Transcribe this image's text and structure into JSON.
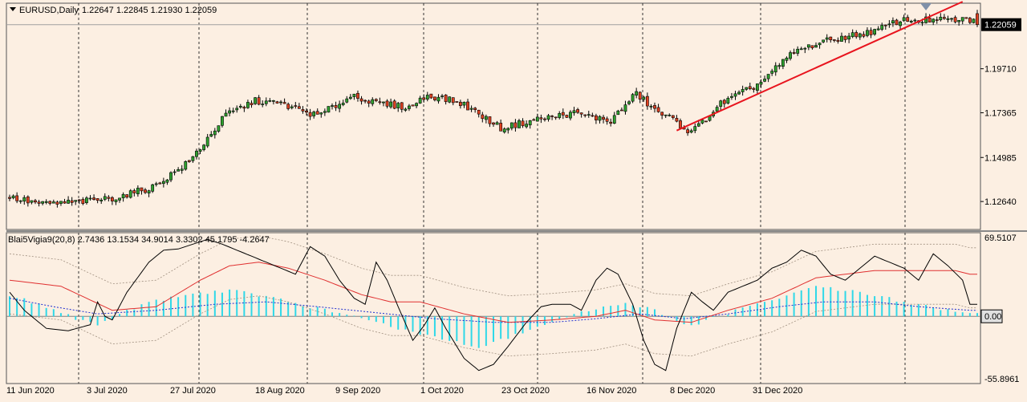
{
  "header": {
    "symbol_label": "EURUSD,Daily",
    "ohlc_label": "1.22647 1.22845 1.21930 1.22059",
    "indicator_label": "Blai5Vigia9(20,8) 2.7436 13.1534 34.9014 3.3302 45.1795 -4.2647"
  },
  "colors": {
    "background": "#fcefe2",
    "bull": "#2ea02e",
    "bear": "#e04020",
    "trendline": "#e8141e",
    "histogram": "#2fd8e8",
    "osc_line": "#000000",
    "signal_line": "#e03030",
    "blue_line": "#2030d0",
    "band": "#a09080"
  },
  "chart_data": [
    {
      "type": "candlestick",
      "title": "EURUSD,Daily",
      "last_price_label": "1.22059",
      "ylim": [
        1.1115,
        1.232
      ],
      "y_ticks": [
        "1.22059",
        "1.19710",
        "1.17365",
        "1.14985",
        "1.12640"
      ],
      "x_ticks": [
        "11 Jun 2020",
        "3 Jul 2020",
        "27 Jul 2020",
        "18 Aug 2020",
        "9 Sep 2020",
        "1 Oct 2020",
        "23 Oct 2020",
        "16 Nov 2020",
        "8 Dec 2020",
        "31 Dec 2020"
      ],
      "close_path": [
        [
          0,
          1.129
        ],
        [
          10,
          1.125
        ],
        [
          20,
          1.1262
        ],
        [
          30,
          1.1285
        ],
        [
          40,
          1.134
        ],
        [
          50,
          1.1475
        ],
        [
          60,
          1.1725
        ],
        [
          68,
          1.18
        ],
        [
          75,
          1.1785
        ],
        [
          85,
          1.172
        ],
        [
          95,
          1.1832
        ],
        [
          100,
          1.179
        ],
        [
          110,
          1.1765
        ],
        [
          115,
          1.183
        ],
        [
          120,
          1.181
        ],
        [
          125,
          1.178
        ],
        [
          135,
          1.1655
        ],
        [
          145,
          1.1702
        ],
        [
          155,
          1.1735
        ],
        [
          165,
          1.1693
        ],
        [
          172,
          1.184
        ],
        [
          177,
          1.175
        ],
        [
          182,
          1.17
        ],
        [
          187,
          1.163
        ],
        [
          195,
          1.1785
        ],
        [
          205,
          1.1885
        ],
        [
          215,
          1.206
        ],
        [
          222,
          1.211
        ],
        [
          230,
          1.2145
        ],
        [
          237,
          1.217
        ],
        [
          244,
          1.223
        ]
      ],
      "last": {
        "open": 1.22647,
        "high": 1.22845,
        "low": 1.2193,
        "close": 1.22059
      },
      "trendline": {
        "start": [
          182,
          1.1642
        ],
        "end": [
          260,
          1.2328
        ]
      }
    },
    {
      "type": "line",
      "title": "Blai5Vigia9(20,8)",
      "ylim": [
        -55.8961,
        69.5107
      ],
      "y_ticks": [
        "69.5107",
        "0.00",
        "-55.8961"
      ],
      "osc_path": [
        [
          0,
          20
        ],
        [
          4,
          5
        ],
        [
          10,
          -10
        ],
        [
          16,
          -12
        ],
        [
          22,
          -7
        ],
        [
          24,
          12
        ],
        [
          26,
          0
        ],
        [
          28,
          -3
        ],
        [
          32,
          20
        ],
        [
          38,
          45
        ],
        [
          42,
          55
        ],
        [
          46,
          56
        ],
        [
          50,
          60
        ],
        [
          54,
          64
        ],
        [
          58,
          60
        ],
        [
          62,
          55
        ],
        [
          66,
          50
        ],
        [
          70,
          45
        ],
        [
          74,
          40
        ],
        [
          78,
          35
        ],
        [
          82,
          58
        ],
        [
          86,
          50
        ],
        [
          90,
          30
        ],
        [
          94,
          15
        ],
        [
          97,
          10
        ],
        [
          100,
          45
        ],
        [
          103,
          30
        ],
        [
          106,
          8
        ],
        [
          110,
          -20
        ],
        [
          113,
          -8
        ],
        [
          116,
          7
        ],
        [
          119,
          -10
        ],
        [
          124,
          -35
        ],
        [
          128,
          -45
        ],
        [
          132,
          -40
        ],
        [
          136,
          -25
        ],
        [
          141,
          -5
        ],
        [
          145,
          8
        ],
        [
          148,
          10
        ],
        [
          153,
          10
        ],
        [
          156,
          5
        ],
        [
          160,
          30
        ],
        [
          163,
          40
        ],
        [
          166,
          35
        ],
        [
          170,
          10
        ],
        [
          173,
          -20
        ],
        [
          176,
          -40
        ],
        [
          179,
          -45
        ],
        [
          182,
          -10
        ],
        [
          186,
          20
        ],
        [
          189,
          12
        ],
        [
          192,
          5
        ],
        [
          196,
          20
        ],
        [
          200,
          25
        ],
        [
          204,
          30
        ],
        [
          208,
          40
        ],
        [
          212,
          45
        ],
        [
          216,
          55
        ],
        [
          220,
          50
        ],
        [
          224,
          35
        ],
        [
          228,
          30
        ],
        [
          232,
          40
        ],
        [
          236,
          50
        ],
        [
          240,
          45
        ],
        [
          244,
          40
        ],
        [
          248,
          30
        ],
        [
          252,
          52
        ],
        [
          256,
          42
        ],
        [
          260,
          30
        ],
        [
          262,
          10
        ]
      ],
      "signal_path": [
        [
          0,
          30
        ],
        [
          14,
          25
        ],
        [
          28,
          5
        ],
        [
          40,
          8
        ],
        [
          52,
          30
        ],
        [
          60,
          42
        ],
        [
          68,
          45
        ],
        [
          76,
          40
        ],
        [
          86,
          30
        ],
        [
          96,
          18
        ],
        [
          104,
          12
        ],
        [
          112,
          12
        ],
        [
          124,
          2
        ],
        [
          136,
          -5
        ],
        [
          148,
          -3
        ],
        [
          160,
          0
        ],
        [
          168,
          5
        ],
        [
          176,
          -3
        ],
        [
          186,
          -5
        ],
        [
          196,
          5
        ],
        [
          208,
          15
        ],
        [
          220,
          32
        ],
        [
          236,
          38
        ],
        [
          248,
          38
        ],
        [
          258,
          38
        ],
        [
          262,
          35
        ]
      ],
      "blue_path": [
        [
          0,
          15
        ],
        [
          12,
          8
        ],
        [
          24,
          2
        ],
        [
          40,
          5
        ],
        [
          56,
          10
        ],
        [
          70,
          12
        ],
        [
          84,
          8
        ],
        [
          100,
          3
        ],
        [
          116,
          -2
        ],
        [
          132,
          -5
        ],
        [
          148,
          -5
        ],
        [
          160,
          -2
        ],
        [
          172,
          2
        ],
        [
          184,
          -2
        ],
        [
          196,
          2
        ],
        [
          210,
          8
        ],
        [
          222,
          12
        ],
        [
          236,
          12
        ],
        [
          248,
          8
        ],
        [
          262,
          5
        ]
      ],
      "histogram": [
        [
          0,
          18
        ],
        [
          12,
          5
        ],
        [
          24,
          -8
        ],
        [
          36,
          10
        ],
        [
          48,
          18
        ],
        [
          62,
          22
        ],
        [
          72,
          15
        ],
        [
          86,
          5
        ],
        [
          100,
          -5
        ],
        [
          112,
          -15
        ],
        [
          128,
          -25
        ],
        [
          144,
          -10
        ],
        [
          158,
          5
        ],
        [
          168,
          10
        ],
        [
          176,
          5
        ],
        [
          186,
          -8
        ],
        [
          198,
          5
        ],
        [
          210,
          15
        ],
        [
          220,
          25
        ],
        [
          232,
          20
        ],
        [
          244,
          12
        ],
        [
          256,
          5
        ],
        [
          262,
          3
        ]
      ]
    }
  ]
}
